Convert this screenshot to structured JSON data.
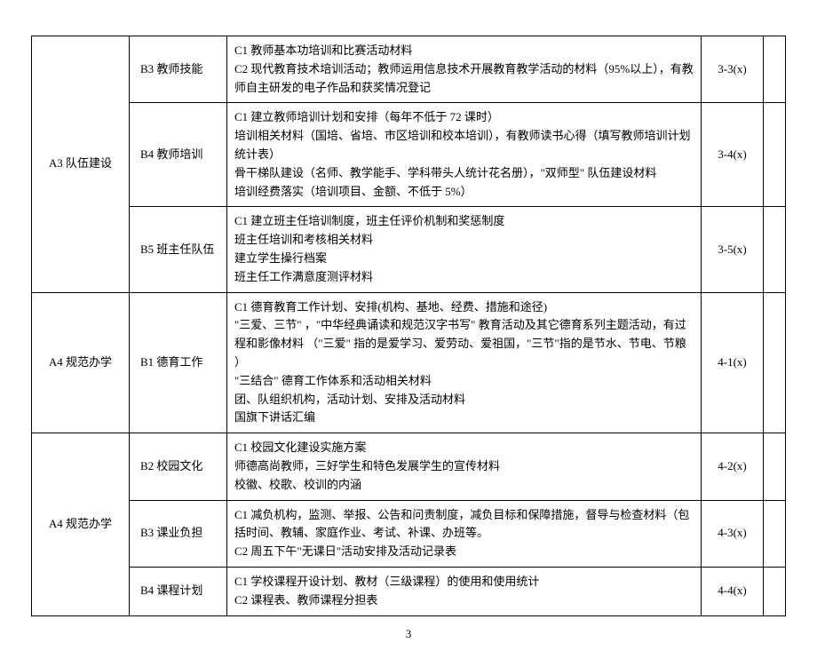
{
  "rows": [
    {
      "a": "A3 队伍建设",
      "a_rowspan": 3,
      "b": "B3 教师技能",
      "c": "C1 教师基本功培训和比赛活动材料\nC2 现代教育技术培训活动；教师运用信息技术开展教育教学活动的材料（95%以上），有教师自主研发的电子作品和获奖情况登记",
      "d": "3-3(x)"
    },
    {
      "b": "B4 教师培训",
      "c": "C1 建立教师培训计划和安排（每年不低于 72 课时）\n培训相关材料（国培、省培、市区培训和校本培训），有教师读书心得（填写教师培训计划统计表）\n骨干梯队建设（名师、教学能手、学科带头人统计花名册），\"双师型\" 队伍建设材料\n培训经费落实（培训项目、金额、不低于 5%）",
      "d": "3-4(x)"
    },
    {
      "b": "B5 班主任队伍",
      "c": "C1 建立班主任培训制度，班主任评价机制和奖惩制度\n班主任培训和考核相关材料\n建立学生操行档案\n班主任工作满意度测评材料",
      "d": "3-5(x)"
    },
    {
      "a": "A4 规范办学",
      "a_rowspan": 1,
      "b": "B1 德育工作",
      "c": "C1 德育教育工作计划、安排(机构、基地、经费、措施和途径)\n\"三爱、三节\" ，\"中华经典诵读和规范汉字书写\" 教育活动及其它德育系列主题活动，有过程和影像材料  （\"三爱\" 指的是爱学习、爱劳动、爱祖国，\"三节\"指的是节水、节电、节粮 ）\n\"三结合\" 德育工作体系和活动相关材料\n团、队组织机构，活动计划、安排及活动材料\n国旗下讲话汇编",
      "d": "4-1(x)"
    },
    {
      "a": "A4 规范办学",
      "a_rowspan": 3,
      "b": "B2 校园文化",
      "c": "C1 校园文化建设实施方案\n师德高尚教师，三好学生和特色发展学生的宣传材料\n校徽、校歌、校训的内涵",
      "d": "4-2(x)"
    },
    {
      "b": "B3 课业负担",
      "c": "C1 减负机构，监测、举报、公告和问责制度，减负目标和保障措施，督导与检查材料（包括时间、教辅、家庭作业、考试、补课、办班等。\nC2 周五下午\"无课日\"活动安排及活动记录表",
      "d": "4-3(x)"
    },
    {
      "b": "B4 课程计划",
      "c": "C1 学校课程开设计划、教材（三级课程）的使用和使用统计\nC2 课程表、教师课程分担表",
      "d": "4-4(x)"
    }
  ],
  "page_number": "3",
  "style": {
    "font_family": "SimSun",
    "font_size_pt": 10,
    "line_height": 1.6,
    "border_color": "#000000",
    "text_color": "#000000",
    "background_color": "#ffffff",
    "col_widths": {
      "a": 110,
      "b": 110,
      "d": 70,
      "e": 25
    }
  }
}
